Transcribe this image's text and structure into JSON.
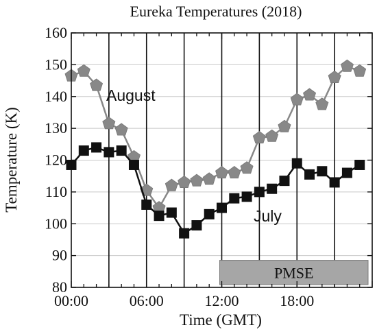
{
  "chart_data": {
    "type": "line",
    "title": "Eureka Temperatures (2018)",
    "xlabel": "Time (GMT)",
    "ylabel": "Temperature (K)",
    "xlim": [
      0,
      24
    ],
    "ylim": [
      80,
      160
    ],
    "x_ticks": [
      0,
      6,
      12,
      18
    ],
    "x_tick_labels": [
      "00:00",
      "06:00",
      "12:00",
      "18:00"
    ],
    "y_ticks": [
      80,
      90,
      100,
      110,
      120,
      130,
      140,
      150,
      160
    ],
    "y_tick_labels": [
      "80",
      "90",
      "100",
      "110",
      "120",
      "130",
      "140",
      "150",
      "160"
    ],
    "vertical_lines": [
      3,
      6,
      9,
      12,
      15,
      18,
      21
    ],
    "grid": true,
    "series": [
      {
        "name": "August",
        "color": "#888888",
        "marker": "pentagon",
        "x": [
          0,
          1,
          2,
          3,
          4,
          5,
          6,
          7,
          8,
          9,
          10,
          11,
          12,
          13,
          14,
          15,
          16,
          17,
          18,
          19,
          20,
          21,
          22,
          23
        ],
        "y": [
          146.5,
          148,
          143.5,
          131.5,
          129.5,
          121,
          110.5,
          105,
          112,
          113,
          113.5,
          114,
          116,
          116,
          117.5,
          127,
          127.5,
          130.5,
          139,
          140.5,
          137.5,
          146,
          149.5,
          148
        ]
      },
      {
        "name": "July",
        "color": "#111111",
        "marker": "square",
        "x": [
          0,
          1,
          2,
          3,
          4,
          5,
          6,
          7,
          8,
          9,
          10,
          11,
          12,
          13,
          14,
          15,
          16,
          17,
          18,
          19,
          20,
          21,
          22,
          23
        ],
        "y": [
          118.5,
          123,
          124,
          122.5,
          123,
          118.5,
          106,
          102.5,
          103.5,
          97,
          99.5,
          103,
          105,
          108,
          108.5,
          110,
          111,
          113.5,
          119,
          115.5,
          116.5,
          113,
          116,
          118.5
        ]
      }
    ],
    "annotation": {
      "label": "PMSE",
      "x_start": 12,
      "x_end": 24,
      "y_start": 80,
      "y_end": 88.5,
      "color": "#a6a6a6"
    }
  }
}
